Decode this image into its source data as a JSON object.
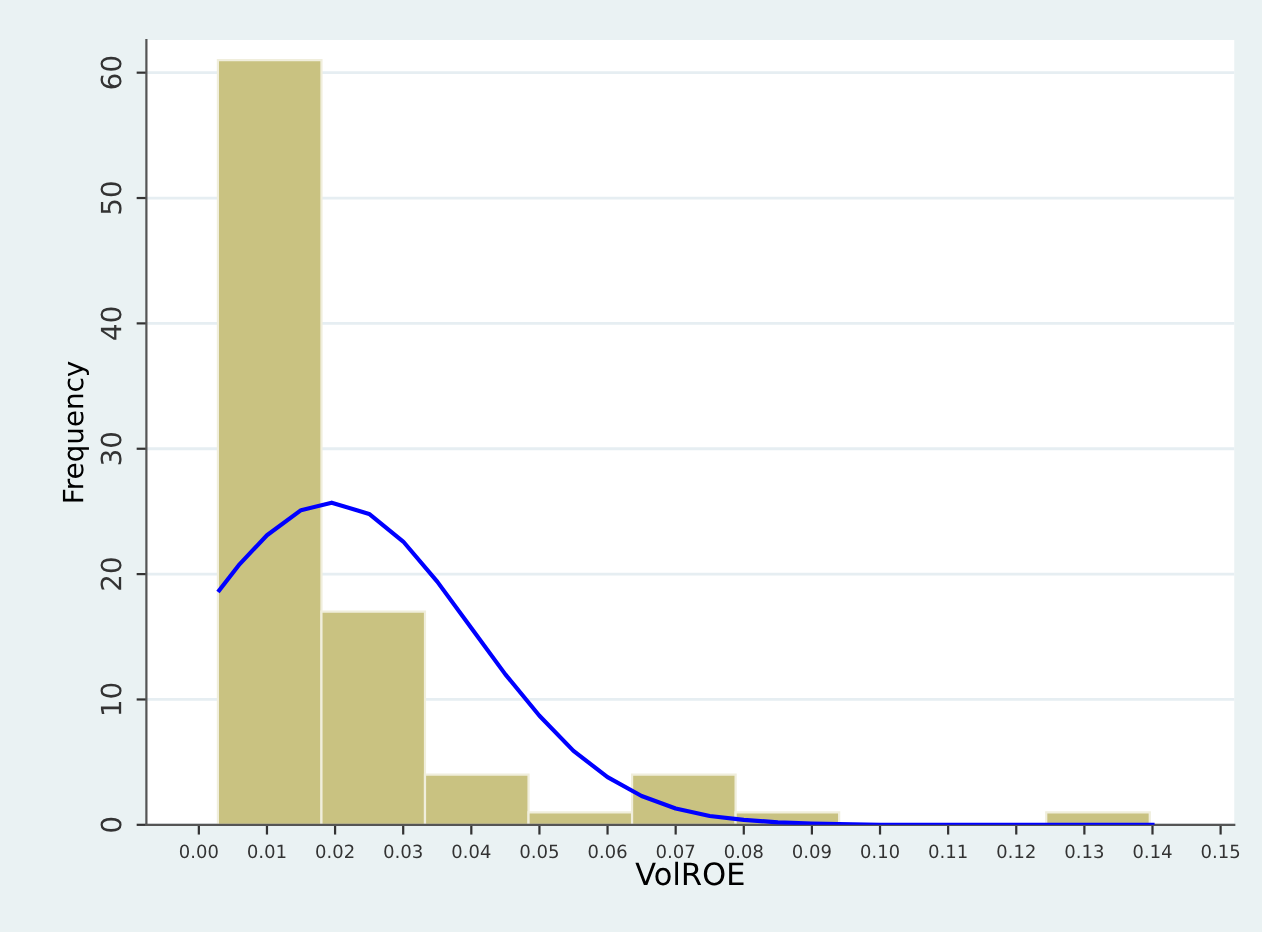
{
  "chart_data": {
    "type": "histogram",
    "xlabel": "VolROE",
    "ylabel": "Frequency",
    "bins": [
      0.0028,
      0.018,
      0.0332,
      0.0484,
      0.0636,
      0.0788,
      0.094,
      0.1092,
      0.1244,
      0.1396
    ],
    "values": [
      61,
      17,
      4,
      1,
      4,
      1,
      0,
      0,
      1
    ],
    "color": "#c9c281",
    "series": [
      {
        "type": "line",
        "color": "#0000ff",
        "x": [
          0.003,
          0.006,
          0.01,
          0.015,
          0.0195,
          0.025,
          0.03,
          0.035,
          0.04,
          0.045,
          0.05,
          0.055,
          0.06,
          0.065,
          0.07,
          0.075,
          0.08,
          0.085,
          0.09,
          0.1,
          0.12,
          0.14
        ],
        "values": [
          18.7,
          20.8,
          23.1,
          25.1,
          25.7,
          24.8,
          22.6,
          19.4,
          15.7,
          12.0,
          8.7,
          5.9,
          3.8,
          2.3,
          1.3,
          0.7,
          0.4,
          0.2,
          0.1,
          0,
          0,
          0
        ]
      }
    ],
    "xlim": [
      -0.0077,
      0.152
    ],
    "ylim": [
      0,
      62.6
    ],
    "xticks": [
      {
        "value": 0,
        "label": "0.00"
      },
      {
        "value": 0.01,
        "label": "0.01"
      },
      {
        "value": 0.02,
        "label": "0.02"
      },
      {
        "value": 0.03,
        "label": "0.03"
      },
      {
        "value": 0.04,
        "label": "0.04"
      },
      {
        "value": 0.05,
        "label": "0.05"
      },
      {
        "value": 0.06,
        "label": "0.06"
      },
      {
        "value": 0.07,
        "label": "0.07"
      },
      {
        "value": 0.08,
        "label": "0.08"
      },
      {
        "value": 0.09,
        "label": "0.09"
      },
      {
        "value": 0.1,
        "label": "0.10"
      },
      {
        "value": 0.11,
        "label": "0.11"
      },
      {
        "value": 0.12,
        "label": "0.12"
      },
      {
        "value": 0.13,
        "label": "0.13"
      },
      {
        "value": 0.14,
        "label": "0.14"
      },
      {
        "value": 0.15,
        "label": "0.15"
      }
    ],
    "yticks": [
      0,
      10,
      20,
      30,
      40,
      50,
      60
    ],
    "grid": "y"
  }
}
